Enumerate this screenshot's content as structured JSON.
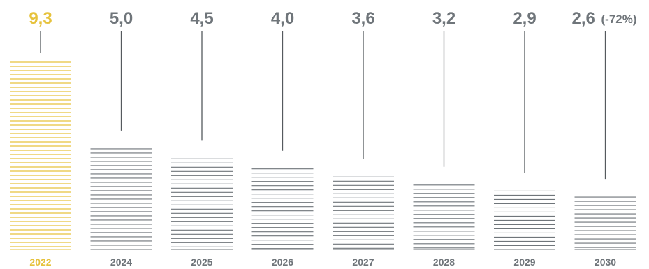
{
  "chart_data": {
    "type": "bar",
    "categories": [
      "2022",
      "2024",
      "2025",
      "2026",
      "2027",
      "2028",
      "2029",
      "2030"
    ],
    "values": [
      9.3,
      5.0,
      4.5,
      4.0,
      3.6,
      3.2,
      2.9,
      2.6
    ],
    "value_labels": [
      "9,3",
      "5,0",
      "4,5",
      "4,0",
      "3,6",
      "3,2",
      "2,9",
      "2,6"
    ],
    "annotation": {
      "category": "2030",
      "text": "(-72%)"
    },
    "title": "",
    "xlabel": "",
    "ylabel": "",
    "ylim": [
      0,
      9.3
    ],
    "grid": false,
    "legend": "none",
    "colors": {
      "highlight": "#e6c23c",
      "bar": "#6f757a",
      "label": "#6f757a",
      "highlight_label": "#e6c23c"
    },
    "highlight_category": "2022"
  }
}
